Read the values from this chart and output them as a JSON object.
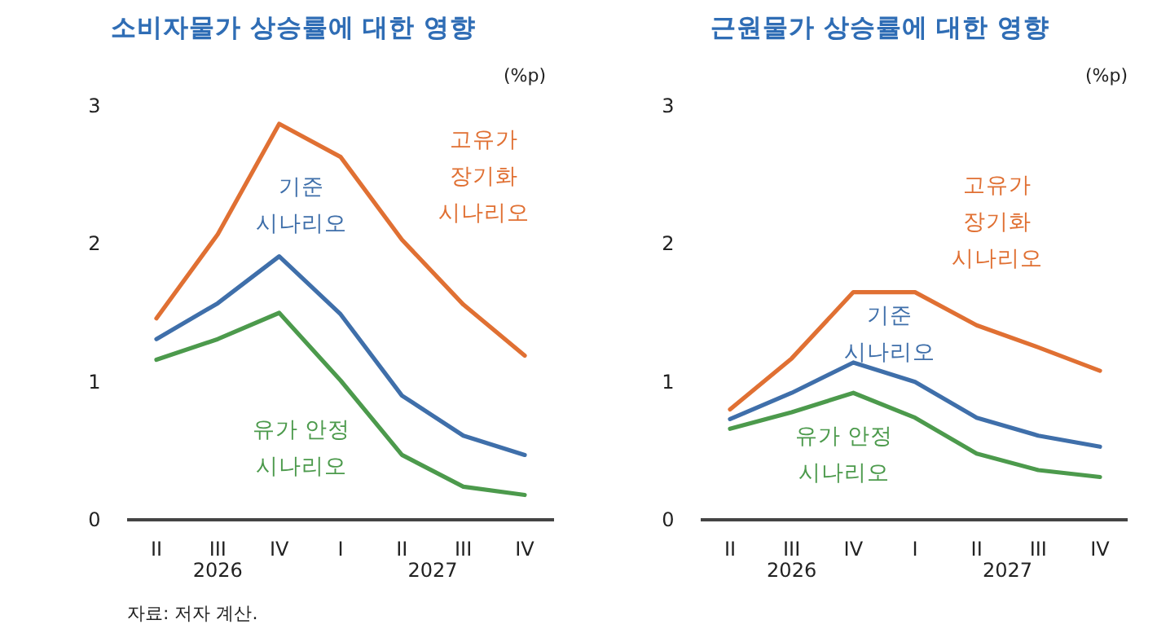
{
  "chart_data": [
    {
      "type": "line",
      "title": "소비자물가 상승률에 대한 영향",
      "ylabel": "(%p)",
      "categories": [
        "II",
        "III",
        "IV",
        "I",
        "II",
        "III",
        "IV"
      ],
      "ylim": [
        0,
        3
      ],
      "yticks": [
        0,
        1,
        2,
        3
      ],
      "grid": false,
      "annotations": [
        "2026",
        "2027",
        "자료: 저자 계산."
      ],
      "series": [
        {
          "name": "고유가\n장기화\n시나리오",
          "color": "#e07033",
          "values": [
            1.46,
            2.07,
            2.87,
            2.63,
            2.03,
            1.56,
            1.19
          ]
        },
        {
          "name": "기준\n시나리오",
          "color": "#3f6faa",
          "values": [
            1.31,
            1.57,
            1.91,
            1.49,
            0.9,
            0.61,
            0.47
          ]
        },
        {
          "name": "유가 안정\n시나리오",
          "color": "#4c9a4c",
          "values": [
            1.16,
            1.31,
            1.5,
            1.01,
            0.47,
            0.24,
            0.18
          ]
        }
      ]
    },
    {
      "type": "line",
      "title": "근원물가 상승률에 대한 영향",
      "ylabel": "(%p)",
      "categories": [
        "II",
        "III",
        "IV",
        "I",
        "II",
        "III",
        "IV"
      ],
      "ylim": [
        0,
        3
      ],
      "yticks": [
        0,
        1,
        2,
        3
      ],
      "grid": false,
      "annotations": [
        "2026",
        "2027"
      ],
      "series": [
        {
          "name": "고유가\n장기화\n시나리오",
          "color": "#e07033",
          "values": [
            0.8,
            1.17,
            1.65,
            1.65,
            1.41,
            1.25,
            1.08
          ]
        },
        {
          "name": "기준\n시나리오",
          "color": "#3f6faa",
          "values": [
            0.73,
            0.92,
            1.14,
            1.0,
            0.74,
            0.61,
            0.53
          ]
        },
        {
          "name": "유가 안정\n시나리오",
          "color": "#4c9a4c",
          "values": [
            0.66,
            0.78,
            0.92,
            0.74,
            0.48,
            0.36,
            0.31
          ]
        }
      ]
    }
  ]
}
